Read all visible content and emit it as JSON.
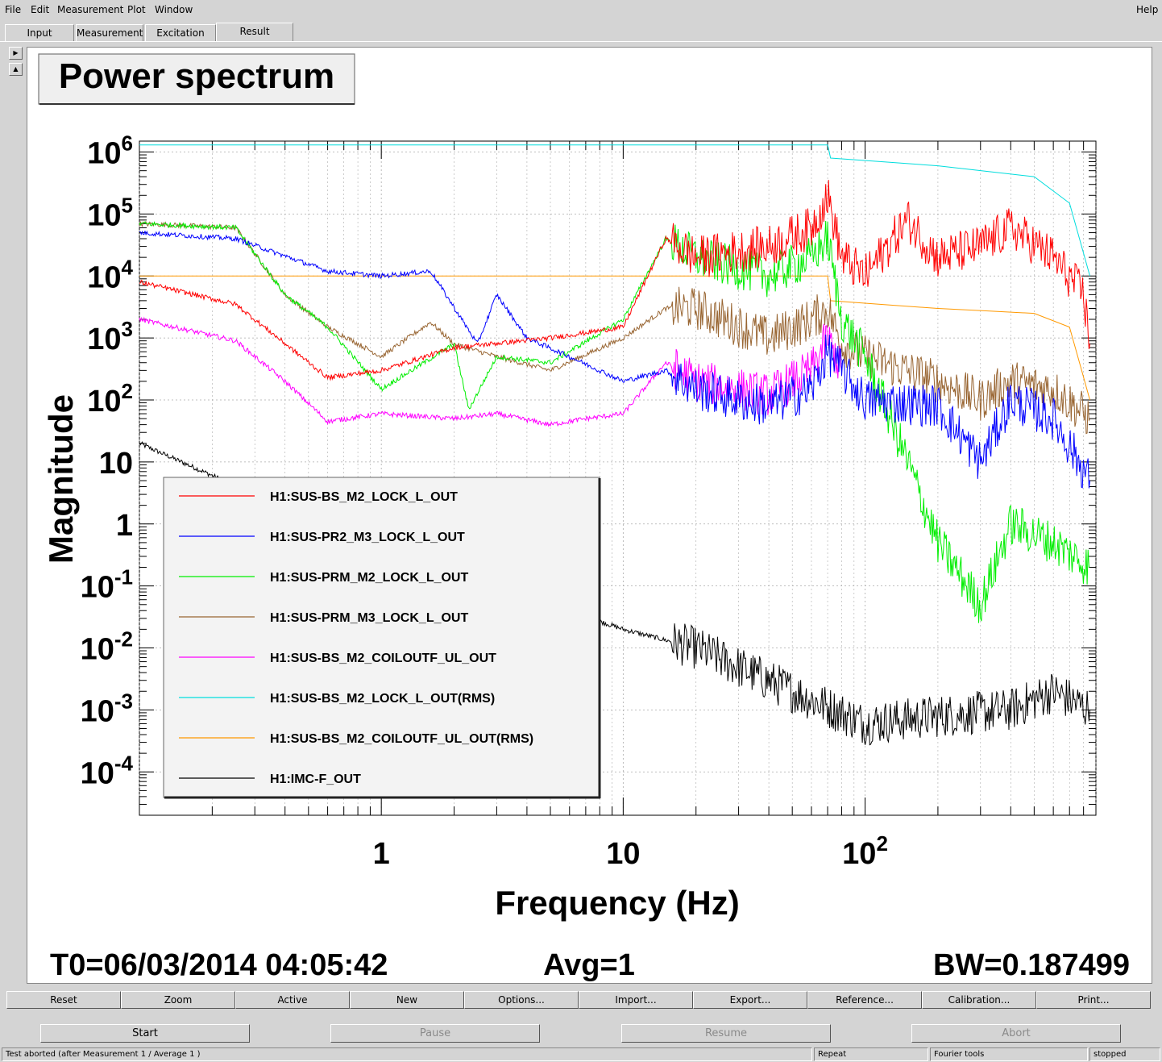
{
  "menu": {
    "file": "File",
    "edit": "Edit",
    "measurement": "Measurement",
    "plot": "Plot",
    "window": "Window",
    "help": "Help"
  },
  "tabs": [
    "Input",
    "Measurement",
    "Excitation",
    "Result"
  ],
  "active_tab": "Result",
  "plot": {
    "title": "Power spectrum",
    "xlabel": "Frequency (Hz)",
    "ylabel": "Magnitude",
    "t0": "T0=06/03/2014 04:05:42",
    "avg": "Avg=1",
    "bw": "BW=0.187499"
  },
  "chart_data": {
    "type": "line",
    "xscale": "log",
    "yscale": "log",
    "xlim": [
      0.1,
      900
    ],
    "ylim": [
      2e-05,
      1500000
    ],
    "x_ticks": [
      "1",
      "10",
      "10^2"
    ],
    "y_ticks": [
      "10^6",
      "10^5",
      "10^4",
      "10^3",
      "10^2",
      "10",
      "1",
      "10^-1",
      "10^-2",
      "10^-3",
      "10^-4"
    ],
    "grid": true,
    "legend_position": "left-middle",
    "series": [
      {
        "name": "H1:SUS-BS_M2_LOCK_L_OUT",
        "color": "#ff0000",
        "x": [
          0.1,
          0.25,
          0.6,
          1,
          2,
          5,
          10,
          15,
          20,
          40,
          60,
          70,
          80,
          100,
          150,
          200,
          300,
          400,
          600,
          800,
          850
        ],
        "y": [
          8000,
          3500,
          230,
          300,
          700,
          1000,
          1500,
          40000,
          20000,
          30000,
          60000,
          200000,
          20000,
          10000,
          80000,
          20000,
          30000,
          60000,
          20000,
          5000,
          800
        ]
      },
      {
        "name": "H1:SUS-PR2_M3_LOCK_L_OUT",
        "color": "#0000ff",
        "x": [
          0.1,
          0.25,
          0.6,
          1,
          1.6,
          2.5,
          3,
          4,
          6,
          10,
          15,
          20,
          30,
          40,
          60,
          70,
          80,
          100,
          200,
          300,
          400,
          600,
          850
        ],
        "y": [
          50000,
          40000,
          12000,
          10000,
          12000,
          800,
          5000,
          1000,
          500,
          200,
          300,
          150,
          100,
          80,
          150,
          600,
          300,
          100,
          80,
          10,
          100,
          50,
          5
        ]
      },
      {
        "name": "H1:SUS-PRM_M2_LOCK_L_OUT",
        "color": "#00ee00",
        "x": [
          0.1,
          0.25,
          0.4,
          0.6,
          1,
          2,
          2.3,
          3,
          5,
          10,
          15,
          20,
          40,
          60,
          70,
          80,
          100,
          150,
          200,
          300,
          400,
          600,
          850
        ],
        "y": [
          70000,
          60000,
          5000,
          1500,
          150,
          800,
          70,
          500,
          400,
          2000,
          40000,
          20000,
          10000,
          20000,
          40000,
          2000,
          500,
          10,
          0.5,
          0.05,
          1,
          0.5,
          0.2
        ]
      },
      {
        "name": "H1:SUS-PRM_M3_LOCK_L_OUT",
        "color": "#996633",
        "x": [
          0.1,
          0.25,
          0.4,
          0.6,
          1,
          1.6,
          2,
          3,
          5,
          10,
          15,
          20,
          40,
          60,
          70,
          80,
          100,
          200,
          300,
          400,
          600,
          850
        ],
        "y": [
          70000,
          60000,
          5000,
          1500,
          500,
          1800,
          800,
          500,
          300,
          1000,
          3000,
          3000,
          1000,
          2000,
          3000,
          800,
          500,
          200,
          100,
          200,
          150,
          50
        ]
      },
      {
        "name": "H1:SUS-BS_M2_COILOUTF_UL_OUT",
        "color": "#ff00ff",
        "x": [
          0.1,
          0.25,
          0.4,
          0.6,
          1,
          2,
          3,
          5,
          7,
          10,
          15,
          20,
          40,
          60,
          70,
          80
        ],
        "y": [
          2000,
          900,
          200,
          45,
          60,
          50,
          60,
          40,
          50,
          60,
          400,
          200,
          120,
          300,
          1000,
          300
        ]
      },
      {
        "name": "H1:SUS-BS_M2_LOCK_L_OUT(RMS)",
        "color": "#00dddd",
        "x": [
          0.1,
          70,
          72,
          200,
          500,
          700,
          850
        ],
        "y": [
          1300000,
          1300000,
          800000,
          600000,
          400000,
          150000,
          10000
        ]
      },
      {
        "name": "H1:SUS-BS_M2_COILOUTF_UL_OUT(RMS)",
        "color": "#ff9900",
        "x": [
          0.1,
          70,
          72,
          200,
          500,
          700,
          850
        ],
        "y": [
          10000,
          10000,
          4000,
          3000,
          2500,
          1500,
          100
        ]
      },
      {
        "name": "H1:IMC-F_OUT",
        "color": "#000000",
        "x": [
          0.1,
          0.3,
          1,
          2,
          5,
          10,
          20,
          50,
          100,
          200,
          400,
          600,
          850
        ],
        "y": [
          20,
          3,
          0.5,
          0.1,
          0.05,
          0.02,
          0.01,
          0.002,
          0.0006,
          0.0008,
          0.001,
          0.002,
          0.001
        ]
      }
    ]
  },
  "buttons_row1": [
    "Reset",
    "Zoom",
    "Active",
    "New",
    "Options...",
    "Import...",
    "Export...",
    "Reference...",
    "Calibration...",
    "Print..."
  ],
  "buttons_row2": [
    "Start",
    "Pause",
    "Resume",
    "Abort"
  ],
  "status": {
    "message": "Test aborted (after Measurement 1 / Average 1 )",
    "repeat": "Repeat",
    "fourier": "Fourier tools",
    "state": "stopped"
  }
}
